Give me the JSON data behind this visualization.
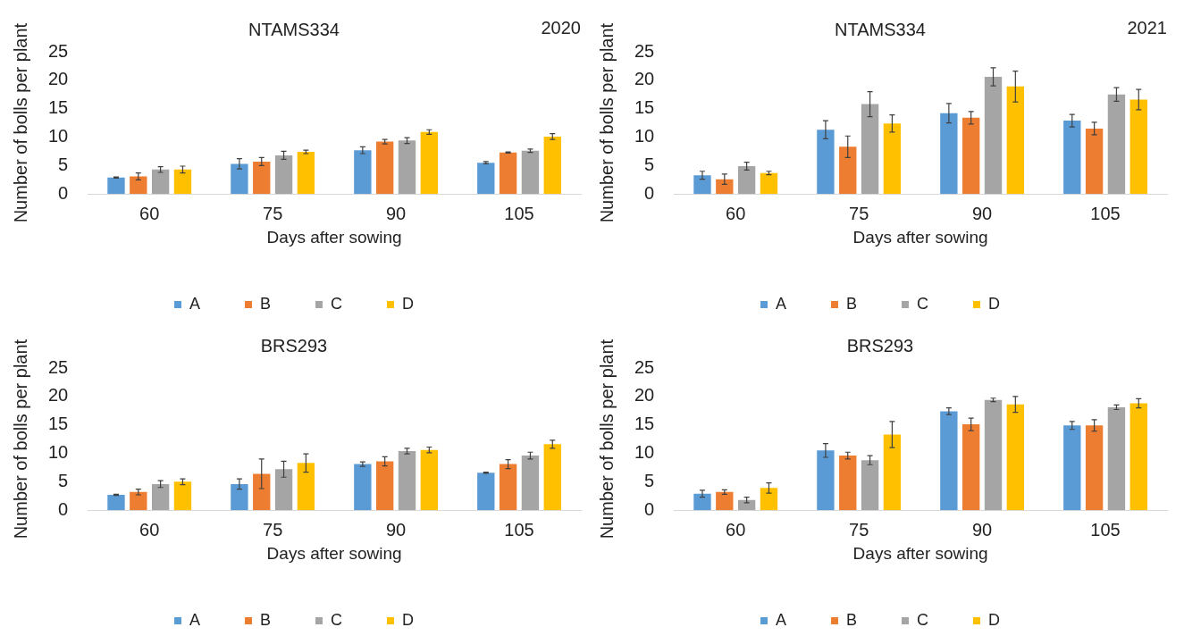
{
  "chart_data": [
    {
      "type": "bar",
      "title": "NTAMS334",
      "subtitle": "2020",
      "xlabel": "Days after sowing",
      "ylabel": "Number of bolls per plant",
      "categories": [
        "60",
        "75",
        "90",
        "105"
      ],
      "ylim": [
        0,
        25
      ],
      "yticks": [
        0,
        5,
        10,
        15,
        20,
        25
      ],
      "grid": false,
      "legend": "bottom",
      "series": [
        {
          "name": "A",
          "color": "#5b9bd5",
          "values": [
            2.9,
            5.3,
            7.7,
            5.5
          ],
          "errors": [
            0.1,
            0.9,
            0.6,
            0.2
          ]
        },
        {
          "name": "B",
          "color": "#ed7d31",
          "values": [
            3.1,
            5.7,
            9.2,
            7.3
          ],
          "errors": [
            0.6,
            0.7,
            0.4,
            0.1
          ]
        },
        {
          "name": "C",
          "color": "#a5a5a5",
          "values": [
            4.3,
            6.8,
            9.4,
            7.6
          ],
          "errors": [
            0.5,
            0.7,
            0.5,
            0.3
          ]
        },
        {
          "name": "D",
          "color": "#ffc000",
          "values": [
            4.3,
            7.4,
            10.9,
            10.1
          ],
          "errors": [
            0.6,
            0.3,
            0.4,
            0.5
          ]
        }
      ]
    },
    {
      "type": "bar",
      "title": "NTAMS334",
      "subtitle": "2021",
      "xlabel": "Days after sowing",
      "ylabel": "Number of bolls per plant",
      "categories": [
        "60",
        "75",
        "90",
        "105"
      ],
      "ylim": [
        0,
        25
      ],
      "yticks": [
        0,
        5,
        10,
        15,
        20,
        25
      ],
      "grid": false,
      "legend": "bottom",
      "series": [
        {
          "name": "A",
          "color": "#5b9bd5",
          "values": [
            3.3,
            11.3,
            14.2,
            12.9
          ],
          "errors": [
            0.7,
            1.6,
            1.7,
            1.1
          ]
        },
        {
          "name": "B",
          "color": "#ed7d31",
          "values": [
            2.6,
            8.3,
            13.4,
            11.5
          ],
          "errors": [
            0.9,
            1.9,
            1.1,
            1.1
          ]
        },
        {
          "name": "C",
          "color": "#a5a5a5",
          "values": [
            4.9,
            15.8,
            20.6,
            17.5
          ],
          "errors": [
            0.7,
            2.2,
            1.6,
            1.2
          ]
        },
        {
          "name": "D",
          "color": "#ffc000",
          "values": [
            3.7,
            12.4,
            18.9,
            16.6
          ],
          "errors": [
            0.3,
            1.5,
            2.7,
            1.8
          ]
        }
      ]
    },
    {
      "type": "bar",
      "title": "BRS293",
      "xlabel": "Days after sowing",
      "ylabel": "Number of bolls per plant",
      "categories": [
        "60",
        "75",
        "90",
        "105"
      ],
      "ylim": [
        0,
        25
      ],
      "yticks": [
        0,
        5,
        10,
        15,
        20,
        25
      ],
      "grid": false,
      "legend": "bottom",
      "series": [
        {
          "name": "A",
          "color": "#5b9bd5",
          "values": [
            2.7,
            4.6,
            8.1,
            6.6
          ],
          "errors": [
            0.1,
            0.9,
            0.4,
            0.1
          ]
        },
        {
          "name": "B",
          "color": "#ed7d31",
          "values": [
            3.2,
            6.4,
            8.6,
            8.1
          ],
          "errors": [
            0.5,
            2.6,
            0.8,
            0.8
          ]
        },
        {
          "name": "C",
          "color": "#a5a5a5",
          "values": [
            4.6,
            7.2,
            10.4,
            9.6
          ],
          "errors": [
            0.6,
            1.4,
            0.5,
            0.6
          ]
        },
        {
          "name": "D",
          "color": "#ffc000",
          "values": [
            5.0,
            8.3,
            10.6,
            11.6
          ],
          "errors": [
            0.5,
            1.6,
            0.5,
            0.7
          ]
        }
      ]
    },
    {
      "type": "bar",
      "title": "BRS293",
      "xlabel": "Days after sowing",
      "ylabel": "Number of bolls per plant",
      "categories": [
        "60",
        "75",
        "90",
        "105"
      ],
      "ylim": [
        0,
        25
      ],
      "yticks": [
        0,
        5,
        10,
        15,
        20,
        25
      ],
      "grid": false,
      "legend": "bottom",
      "series": [
        {
          "name": "A",
          "color": "#5b9bd5",
          "values": [
            2.9,
            10.5,
            17.4,
            14.9
          ],
          "errors": [
            0.6,
            1.2,
            0.6,
            0.7
          ]
        },
        {
          "name": "B",
          "color": "#ed7d31",
          "values": [
            3.2,
            9.6,
            15.1,
            14.9
          ],
          "errors": [
            0.4,
            0.6,
            1.1,
            1.0
          ]
        },
        {
          "name": "C",
          "color": "#a5a5a5",
          "values": [
            1.8,
            8.8,
            19.4,
            18.1
          ],
          "errors": [
            0.5,
            0.8,
            0.3,
            0.4
          ]
        },
        {
          "name": "D",
          "color": "#ffc000",
          "values": [
            3.9,
            13.3,
            18.6,
            18.8
          ],
          "errors": [
            0.9,
            2.3,
            1.4,
            0.8
          ]
        }
      ]
    }
  ]
}
